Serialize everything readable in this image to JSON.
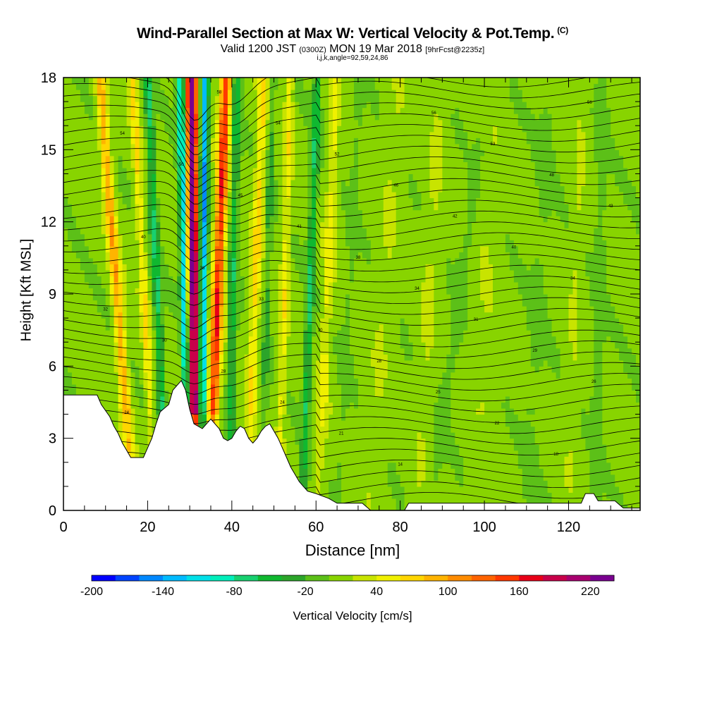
{
  "header": {
    "title": "Wind-Parallel Section at Max W: Vertical Velocity & Pot.Temp.",
    "copyright": "(C)",
    "valid_main": "Valid 1200 JST",
    "valid_small_1": "(0300Z)",
    "valid_date": "MON 19 Mar 2018",
    "valid_small_2": "[9hrFcst@2235z]",
    "indices": "i,j,k,angle=92,59,24,86"
  },
  "chart_data": {
    "type": "heatmap",
    "title": "Wind-Parallel Section at Max W: Vertical Velocity & Pot.Temp.",
    "xlabel": "Distance [nm]",
    "ylabel": "Height [Kft MSL]",
    "xlim": [
      0,
      137
    ],
    "ylim": [
      0,
      18
    ],
    "x_ticks": [
      "0",
      "20",
      "40",
      "60",
      "80",
      "100",
      "120"
    ],
    "x_tick_values": [
      0,
      20,
      40,
      60,
      80,
      100,
      120
    ],
    "y_ticks": [
      "0",
      "3",
      "6",
      "9",
      "12",
      "15",
      "18"
    ],
    "y_tick_values": [
      0,
      3,
      6,
      9,
      12,
      15,
      18
    ],
    "colorbar": {
      "label": "Vertical Velocity [cm/s]",
      "tick_labels": [
        "-200",
        "-140",
        "-80",
        "-20",
        "40",
        "100",
        "160",
        "220"
      ],
      "tick_values": [
        -200,
        -140,
        -80,
        -20,
        40,
        100,
        160,
        220
      ],
      "levels": [
        -200,
        -180,
        -160,
        -140,
        -120,
        -100,
        -80,
        -60,
        -40,
        -20,
        0,
        20,
        40,
        60,
        80,
        100,
        120,
        140,
        160,
        180,
        200,
        220
      ],
      "colors": [
        "#0000ff",
        "#0044ff",
        "#0088ff",
        "#00bbff",
        "#00e0e8",
        "#00eebb",
        "#18d070",
        "#10b830",
        "#2ca52a",
        "#5cc018",
        "#88d400",
        "#c8e400",
        "#f0f000",
        "#ffd600",
        "#ffb400",
        "#ff8c00",
        "#ff6400",
        "#ff3800",
        "#e80018",
        "#c8004a",
        "#a80070",
        "#7a0090"
      ]
    },
    "terrain_top_kft": [
      [
        0,
        4.8
      ],
      [
        8,
        4.8
      ],
      [
        9,
        4.4
      ],
      [
        11,
        3.9
      ],
      [
        12,
        3.5
      ],
      [
        13,
        3.2
      ],
      [
        14,
        2.8
      ],
      [
        15,
        2.5
      ],
      [
        16,
        2.2
      ],
      [
        19,
        2.2
      ],
      [
        20,
        2.6
      ],
      [
        21,
        3.0
      ],
      [
        22,
        3.6
      ],
      [
        23,
        4.1
      ],
      [
        25,
        4.4
      ],
      [
        26,
        5.0
      ],
      [
        28,
        5.4
      ],
      [
        29,
        5.0
      ],
      [
        30,
        4.2
      ],
      [
        31,
        3.6
      ],
      [
        33,
        3.4
      ],
      [
        34,
        3.6
      ],
      [
        35,
        3.8
      ],
      [
        36,
        3.6
      ],
      [
        37,
        3.4
      ],
      [
        38,
        3.0
      ],
      [
        39,
        2.9
      ],
      [
        40,
        3.0
      ],
      [
        41,
        3.3
      ],
      [
        42,
        3.5
      ],
      [
        43,
        3.4
      ],
      [
        44,
        3.0
      ],
      [
        45,
        2.8
      ],
      [
        46,
        3.0
      ],
      [
        47,
        3.3
      ],
      [
        48,
        3.5
      ],
      [
        49,
        3.6
      ],
      [
        50,
        3.3
      ],
      [
        51,
        3.0
      ],
      [
        52,
        2.6
      ],
      [
        53,
        2.2
      ],
      [
        54,
        1.8
      ],
      [
        55,
        1.5
      ],
      [
        56,
        1.2
      ],
      [
        57,
        1.0
      ],
      [
        58,
        0.8
      ],
      [
        60,
        0.7
      ],
      [
        63,
        0.5
      ],
      [
        65,
        0.3
      ],
      [
        71,
        0.3
      ],
      [
        73,
        0.0
      ],
      [
        81,
        0.0
      ],
      [
        82,
        0.3
      ],
      [
        123,
        0.3
      ],
      [
        124,
        0.7
      ],
      [
        126,
        0.7
      ],
      [
        127,
        0.4
      ],
      [
        131,
        0.4
      ],
      [
        133,
        0.1
      ],
      [
        137,
        0.1
      ]
    ],
    "theta_contour_labels": [
      "10",
      "13",
      "14",
      "18",
      "19",
      "21",
      "22",
      "24",
      "24",
      "25",
      "26",
      "28",
      "28",
      "29",
      "30",
      "30",
      "31",
      "32",
      "33",
      "34",
      "34",
      "36",
      "38",
      "40",
      "40",
      "41",
      "42",
      "43",
      "45",
      "46",
      "48",
      "50",
      "52",
      "53",
      "54",
      "54",
      "56",
      "56",
      "58"
    ],
    "grid": false,
    "legend": "none"
  }
}
